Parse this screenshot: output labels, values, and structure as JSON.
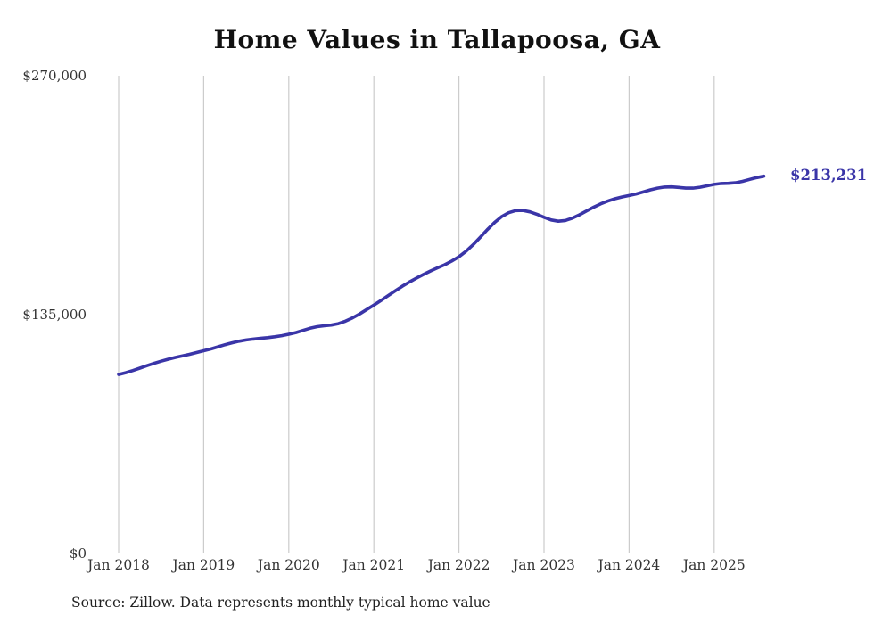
{
  "chart_data": {
    "type": "line",
    "title": "Home Values in Tallapoosa, GA",
    "series_name": "Monthly typical home value",
    "x_start": "Jan 2018",
    "x_end": "Aug 2025",
    "x_tick_labels": [
      "Jan 2018",
      "Jan 2019",
      "Jan 2020",
      "Jan 2021",
      "Jan 2022",
      "Jan 2023",
      "Jan 2024",
      "Jan 2025"
    ],
    "y_tick_labels": [
      "$270,000",
      "$135,000",
      "$0"
    ],
    "y_ticks": [
      270000,
      135000,
      0
    ],
    "ylim": [
      0,
      270000
    ],
    "grid": "vertical-only",
    "legend": "none",
    "line_color": "#3a35a8",
    "grid_color": "#cccccc",
    "end_label": "$213,231",
    "end_value": 213231,
    "source_note": "Source: Zillow. Data represents monthly typical home value",
    "monthly_values": [
      101200,
      102200,
      103400,
      104800,
      106200,
      107500,
      108700,
      109800,
      110800,
      111700,
      112600,
      113600,
      114600,
      115600,
      116800,
      118000,
      119100,
      120000,
      120700,
      121200,
      121600,
      122000,
      122500,
      123100,
      123900,
      124900,
      126100,
      127300,
      128200,
      128700,
      129100,
      129900,
      131300,
      133200,
      135400,
      137900,
      140400,
      143000,
      145700,
      148400,
      151000,
      153400,
      155600,
      157700,
      159700,
      161500,
      163200,
      165300,
      167700,
      170800,
      174500,
      178700,
      183000,
      187000,
      190300,
      192600,
      193800,
      193900,
      193100,
      191700,
      190000,
      188500,
      187800,
      188200,
      189500,
      191400,
      193600,
      195700,
      197600,
      199200,
      200500,
      201500,
      202300,
      203200,
      204300,
      205500,
      206500,
      207100,
      207200,
      206900,
      206500,
      206500,
      207000,
      207800,
      208600,
      209100,
      209200,
      209500,
      210300,
      211400,
      212400,
      213231
    ]
  }
}
